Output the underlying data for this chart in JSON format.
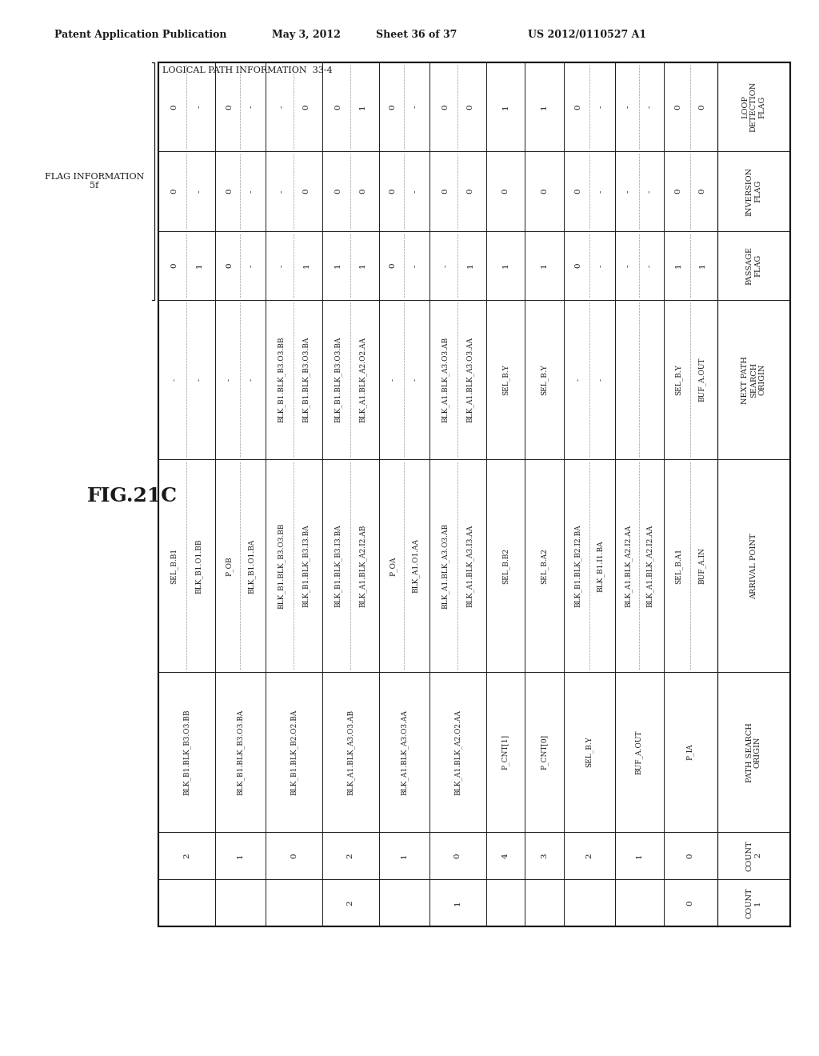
{
  "header_left": "Patent Application Publication",
  "header_date": "May 3, 2012",
  "header_sheet": "Sheet 36 of 37",
  "header_patent": "US 2012/0110527 A1",
  "fig_label": "FIG.21C",
  "logical_path_label": "LOGICAL PATH INFORMATION  33-4",
  "background_color": "#ffffff",
  "text_color": "#1a1a1a",
  "line_color": "#1a1a1a",
  "flag_info": "FLAG INFORMATION\n5f",
  "col_headers": [
    "COUNT\n1",
    "COUNT\n2",
    "PATH SEARCH\nORIGIN",
    "ARRIVAL POINT",
    "NEXT PATH\nSEARCH\nORIGIN",
    "PASSAGE\nFLAG",
    "INVERSION\nFLAG",
    "LOOP\nDETECTION\nFLAG"
  ],
  "rows": [
    [
      "0",
      "0",
      "P_IA",
      [
        "BUF_A.IN",
        "SEL_B.A1"
      ],
      [
        "BUF_A.OUT",
        "SEL_B.Y"
      ],
      [
        "1",
        "1"
      ],
      [
        "0",
        "0"
      ],
      [
        "0",
        "0"
      ]
    ],
    [
      "",
      "1",
      "BUF_A.OUT",
      [
        "BLK_A1.BLK_A2.I2.AA",
        "BLK_A1.BLK_A2.I2.AA"
      ],
      [
        "",
        ""
      ],
      [
        "-",
        "-"
      ],
      [
        "-",
        "-"
      ],
      [
        "-",
        "-"
      ]
    ],
    [
      "",
      "2",
      "SEL_B.Y",
      [
        "BLK_B1.I1.BA",
        "BLK_B1.BLK_B2.I2.BA"
      ],
      [
        "-",
        "-"
      ],
      [
        "-",
        "0"
      ],
      [
        "-",
        "0"
      ],
      [
        "-",
        "0"
      ]
    ],
    [
      "",
      "3",
      "P_CNT[0]",
      [
        "SEL_B.A2"
      ],
      [
        "SEL_B.Y"
      ],
      [
        "1"
      ],
      [
        "0"
      ],
      [
        "1"
      ]
    ],
    [
      "",
      "4",
      "P_CNT[1]",
      [
        "SEL_B.B2"
      ],
      [
        "SEL_B.Y"
      ],
      [
        "1"
      ],
      [
        "0"
      ],
      [
        "1"
      ]
    ],
    [
      "1",
      "0",
      "BLK_A1.BLK_A2.O2.AA",
      [
        "BLK_A1.BLK_A3.I3.AA",
        "BLK_A1.BLK_A3.O3.AB"
      ],
      [
        "BLK_A1.BLK_A3.O3.AA",
        "BLK_A1.BLK_A3.O3.AB"
      ],
      [
        "1",
        "-"
      ],
      [
        "0",
        "0"
      ],
      [
        "0",
        "0"
      ]
    ],
    [
      "",
      "1",
      "BLK_A1.BLK_A3.O3.AA",
      [
        "BLK_A1.O1.AA",
        "P_OA"
      ],
      [
        "-",
        "-"
      ],
      [
        "-",
        "0"
      ],
      [
        "-",
        "0"
      ],
      [
        "-",
        "0"
      ]
    ],
    [
      "2",
      "2",
      "BLK_A1.BLK_A3.O3.AB",
      [
        "BLK_A1.BLK_A2.I2.AB",
        "BLK_B1.BLK_B3.I3.BA"
      ],
      [
        "BLK_A1.BLK_A2.O2.AA",
        "BLK_B1.BLK_B3.O3.BA"
      ],
      [
        "1",
        "1"
      ],
      [
        "0",
        "0"
      ],
      [
        "1",
        "0"
      ]
    ],
    [
      "",
      "0",
      "BLK_B1.BLK_B2.O2.BA",
      [
        "BLK_B1.BLK_B3.I3.BA",
        "BLK_B1.BLK_B3.O3.BB"
      ],
      [
        "BLK_B1.BLK_B3.O3.BA",
        "BLK_B1.BLK_B3.O3.BB"
      ],
      [
        "1",
        "-"
      ],
      [
        "0",
        "-"
      ],
      [
        "0",
        "-"
      ]
    ],
    [
      "",
      "1",
      "BLK_B1.BLK_B3.O3.BA",
      [
        "BLK_B1.O1.BA",
        "P_OB"
      ],
      [
        "-",
        "-"
      ],
      [
        "-",
        "0"
      ],
      [
        "-",
        "0"
      ],
      [
        "-",
        "0"
      ]
    ],
    [
      "",
      "2",
      "BLK_B1.BLK_B3.O3.BB",
      [
        "BLK_B1.O1.BB",
        "SEL_B.B1"
      ],
      [
        "-",
        "-"
      ],
      [
        "1",
        "0"
      ],
      [
        "-",
        "0"
      ],
      [
        "-",
        "0"
      ]
    ]
  ]
}
